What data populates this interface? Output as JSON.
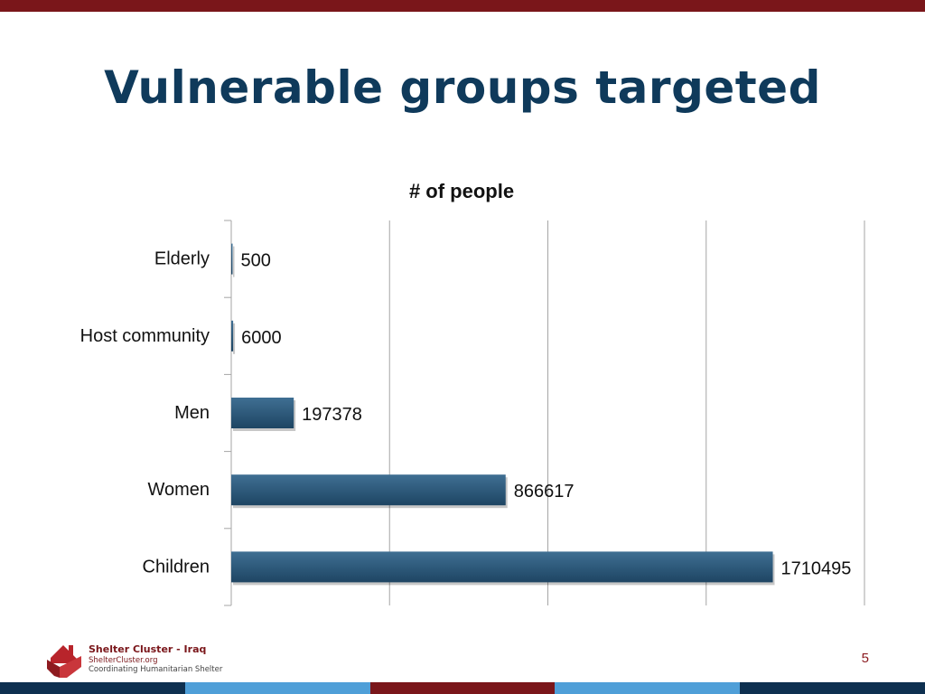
{
  "slide": {
    "title": "Vulnerable groups targeted",
    "page_number": "5"
  },
  "footer": {
    "org_name": "Shelter Cluster - Iraq",
    "org_url": "ShelterCluster.org",
    "tagline": "Coordinating Humanitarian Shelter",
    "logo_icon": "house-hands-icon"
  },
  "colors": {
    "title": "#0f3a5b",
    "accent_red": "#7a161a",
    "navy": "#0e3050",
    "light_blue": "#4f9fd8",
    "bar_top": "#3f6f93",
    "bar_bottom": "#1e4563",
    "gridline": "#a6a6a6",
    "page_number": "#8b1a1f"
  },
  "bottom_band": [
    "#0e3050",
    "#4f9fd8",
    "#7a161a",
    "#4f9fd8",
    "#0e3050"
  ],
  "chart_data": {
    "type": "bar",
    "orientation": "horizontal",
    "title": "# of people",
    "categories": [
      "Elderly",
      "Host community",
      "Men",
      "Women",
      "Children"
    ],
    "values": [
      500,
      6000,
      197378,
      866617,
      1710495
    ],
    "data_labels": [
      "500",
      "6000",
      "197378",
      "866617",
      "1710495"
    ],
    "xlim": [
      0,
      2000000
    ],
    "grid": true,
    "legend": "none"
  }
}
